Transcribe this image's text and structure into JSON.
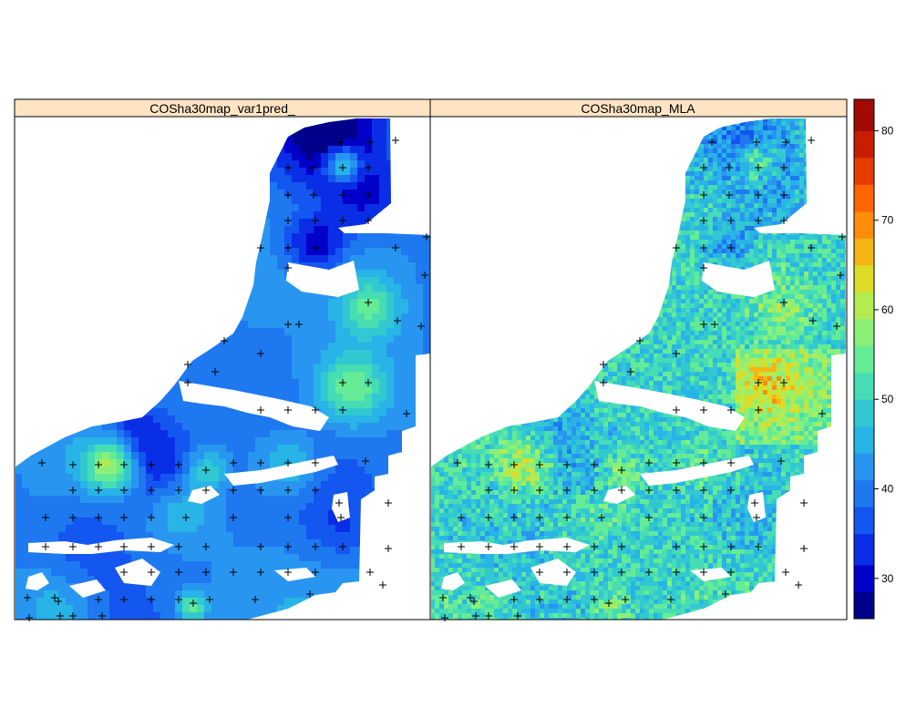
{
  "panels": [
    {
      "title": "COSha30map_var1pred_"
    },
    {
      "title": "COSha30map_MLA"
    }
  ],
  "legend": {
    "min": 25.5,
    "max": 83.5,
    "breaks": [
      25.5,
      28.5,
      31.5,
      35,
      38,
      41,
      44,
      47,
      50,
      53,
      56,
      59,
      62,
      65,
      68,
      71,
      74,
      77,
      80,
      83.5
    ],
    "colors": [
      "#00008B",
      "#0000C8",
      "#0A2EE6",
      "#1456F0",
      "#1E78F0",
      "#2896F0",
      "#28B4E6",
      "#32C8D2",
      "#46DCB4",
      "#64EB96",
      "#8CF078",
      "#B4EB50",
      "#DCDC28",
      "#F5B414",
      "#FF8C0A",
      "#FF6400",
      "#E63C00",
      "#C81E00",
      "#A00A00"
    ],
    "ticks": [
      "30",
      "40",
      "50",
      "60",
      "70",
      "80"
    ],
    "tick_values": [
      30,
      40,
      50,
      60,
      70,
      80
    ]
  },
  "colors": {
    "strip_bg": "#FFE4C4",
    "frame": "#000000"
  }
}
